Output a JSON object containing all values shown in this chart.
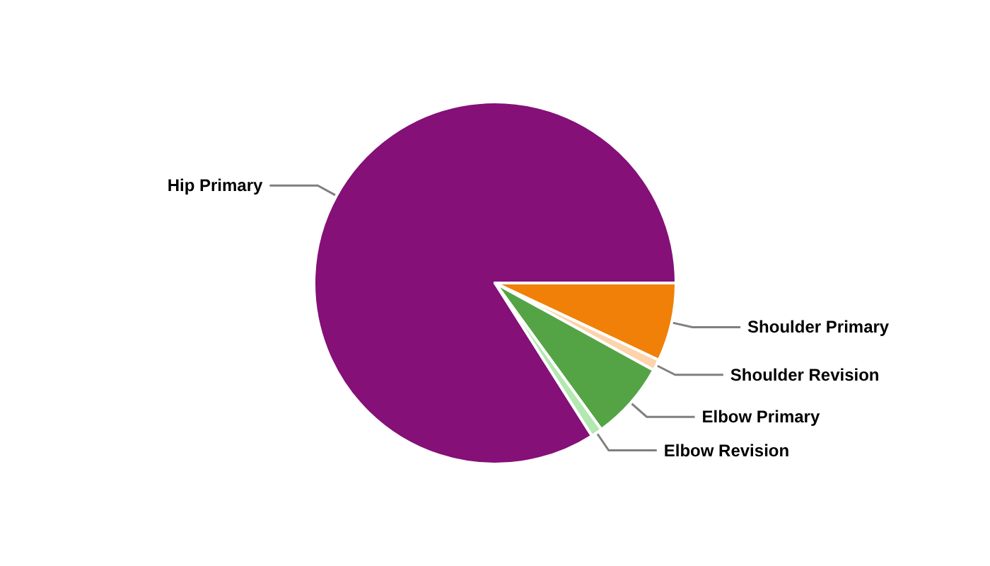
{
  "chart_data": {
    "type": "pie",
    "categories": [
      "Hip Primary",
      "Shoulder Primary",
      "Shoulder Revision",
      "Elbow Primary",
      "Elbow Revision"
    ],
    "values": [
      84,
      7,
      1,
      7,
      1
    ],
    "colors": [
      "#841078",
      "#f08008",
      "#fdd3ab",
      "#54a446",
      "#b3e8b0"
    ]
  }
}
